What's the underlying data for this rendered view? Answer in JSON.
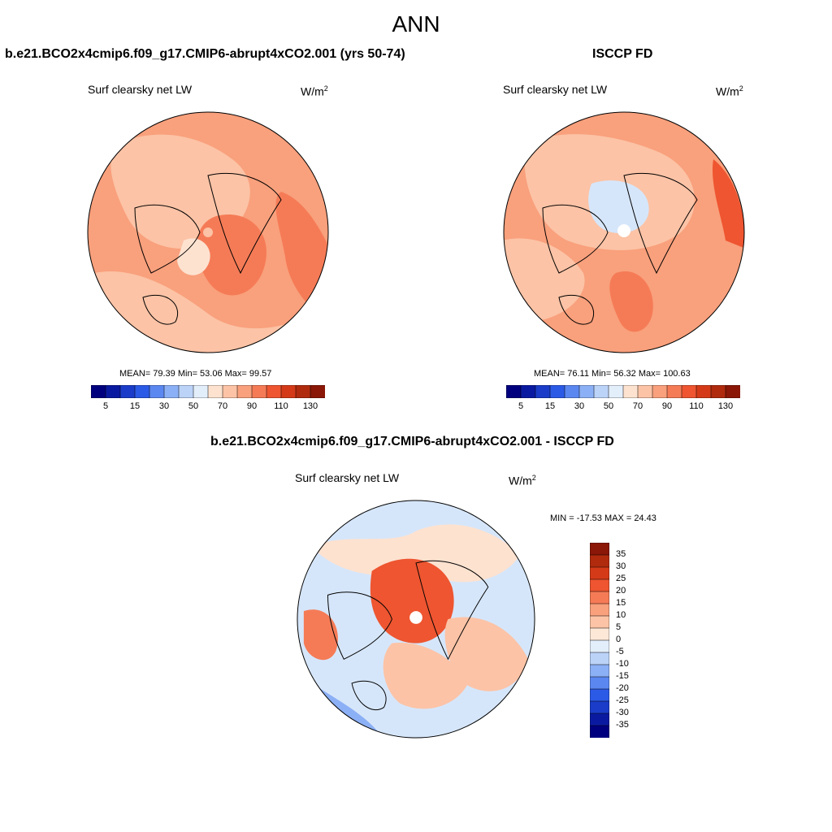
{
  "figure": {
    "title": "ANN"
  },
  "panels": {
    "model": {
      "title": "b.e21.BCO2x4cmip6.f09_g17.CMIP6-abrupt4xCO2.001 (yrs 50-74)",
      "variable": "Surf clearsky net LW",
      "units_base": "W/m",
      "units_exp": "2",
      "stats": "MEAN=  79.39  Min=  53.06  Max=  99.57"
    },
    "obs": {
      "title": "ISCCP FD",
      "variable": "Surf clearsky net LW",
      "units_base": "W/m",
      "units_exp": "2",
      "stats": "MEAN=  76.11  Min=  56.32  Max= 100.63"
    },
    "diff": {
      "title": "b.e21.BCO2x4cmip6.f09_g17.CMIP6-abrupt4xCO2.001 - ISCCP FD",
      "variable": "Surf clearsky net LW",
      "units_base": "W/m",
      "units_exp": "2",
      "stats": "MIN = -17.53 MAX =  24.43"
    }
  },
  "colorbar_abs": {
    "colors": [
      "#00007f",
      "#0a1aa0",
      "#1a3cc8",
      "#2b5ae6",
      "#5b87f0",
      "#8cb0f5",
      "#bcd3f8",
      "#e3eefb",
      "#fde2d0",
      "#fcc3a6",
      "#f9a07c",
      "#f57b56",
      "#ee5530",
      "#d43a17",
      "#b02a0e",
      "#8a1707"
    ],
    "labels": [
      "5",
      "15",
      "30",
      "50",
      "70",
      "90",
      "110",
      "130"
    ]
  },
  "colorbar_diff": {
    "colors": [
      "#8a1707",
      "#b02a0e",
      "#d43a17",
      "#ee5530",
      "#f57b56",
      "#f9a07c",
      "#fcc3a6",
      "#fde8d8",
      "#e3eefb",
      "#bcd3f8",
      "#8cb0f5",
      "#5b87f0",
      "#2b5ae6",
      "#1a3cc8",
      "#0a1aa0",
      "#00007f"
    ],
    "labels": [
      "35",
      "30",
      "25",
      "20",
      "15",
      "10",
      "5",
      "0",
      "-5",
      "-10",
      "-15",
      "-20",
      "-25",
      "-30",
      "-35"
    ]
  },
  "field_colors": {
    "model_bg": "#f9a07c",
    "obs_bg": "#f9a07c",
    "diff_bg": "#d6e6fa"
  }
}
